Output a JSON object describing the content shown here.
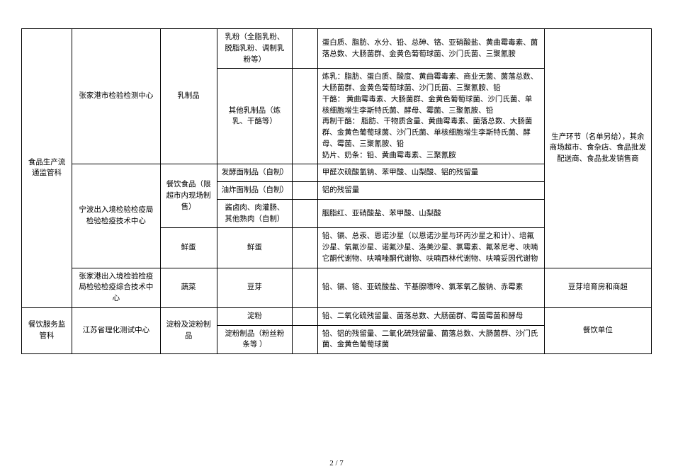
{
  "page_number": "2 / 7",
  "table": {
    "col1_header1": "食品生产流通监管科",
    "col1_header2": "餐饮服务监管科",
    "testers": {
      "t1": "张家港市检验检测中心",
      "t2": "宁波出入境检验检疫局检验检疫技术中心",
      "t3": "张家港出入境检验检疫局检验检疫综合技术中心",
      "t4": "江苏省理化测试中心"
    },
    "categories": {
      "c1": "乳制品",
      "c2": "餐饮食品（限超市内现场制售）",
      "c3": "鲜蛋",
      "c4": "蔬菜",
      "c5": "淀粉及淀粉制品"
    },
    "subcategories": {
      "s1": "乳粉（全脂乳粉、脱脂乳粉、调制乳粉等）",
      "s2": "其他乳制品（炼乳、干酪等）",
      "s3": "发酵面制品（自制）",
      "s4": "油炸面制品（自制）",
      "s5": "酱卤肉、肉灌肠、其他熟肉（自制）",
      "s6": "鲜蛋",
      "s7": "豆芽",
      "s8": "淀粉",
      "s9": "淀粉制品（粉丝粉条等 ）"
    },
    "indicators": {
      "i1": "蛋白质、脂肪、水分、铅、总砷、铬、亚硝酸盐、黄曲霉毒素、菌落总数、大肠菌群、金黄色葡萄球菌、沙门氏菌、三聚氰胺",
      "i2": "炼乳：脂肪、蛋白质、酸度、黄曲霉毒素、商业无菌、菌落总数、大肠菌群、金黄色葡萄球菌、沙门氏菌、三聚氰胺、铅\n干酪： 黄曲霉毒素、大肠菌群、金黄色葡萄球菌、沙门氏菌、单核细胞增生李斯特氏菌、酵母、霉菌、三聚氰胺、铅\n再制干酪： 脂肪、干物质含量、黄曲霉毒素、菌落总数、大肠菌群、金黄色葡萄球菌、沙门氏菌、单核细胞增生李斯特氏菌、酵母、霉菌、三聚氰胺、铅\n奶片、奶条：铅、黄曲霉毒素、三聚氰胺",
      "i3": "甲醛次硫酸氢钠、苯甲酸、山梨酸、铝的残留量",
      "i4": "铝的残留量",
      "i5": "胭脂红、亚硝酸盐、苯甲酸、山梨酸",
      "i6": "铅、镉、总汞、恩诺沙星（以恩诺沙星与环丙沙星之和计）、培氟沙星、氧氟沙星、诺氟沙星、洛美沙星、氯霉素、氟苯尼考、呋喃它酮代谢物、呋喃唑酮代谢物、呋喃西林代谢物、呋喃妥因代谢物",
      "i7": "铅、镉、铬、亚硫酸盐、苄基腺嘌呤、氯苯氧乙酸钠、赤霉素",
      "i8": "铅、二氧化硫残留量、菌落总数、大肠菌群、霉菌霉菌和酵母",
      "i9": "铅、铝的残留量、二氧化硫残留量、菌落总数、大肠菌群、沙门氏菌、金黄色葡萄球菌"
    },
    "remarks": {
      "r1": "生产环节（名单另给），其余商场超市、食杂店、食品批发配送商、食品批发销售商",
      "r2": "豆芽培育房和商超",
      "r3": "餐饮单位"
    }
  }
}
